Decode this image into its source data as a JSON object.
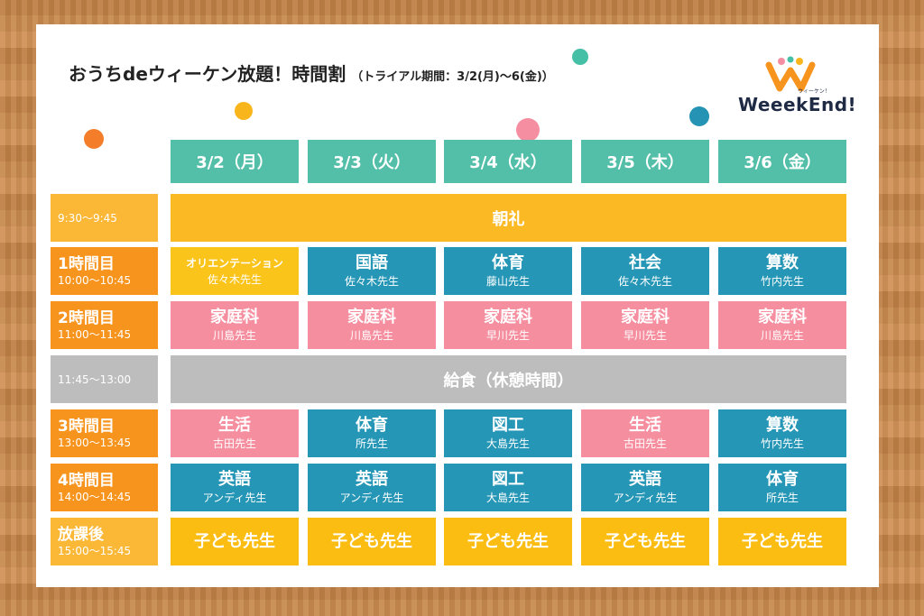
{
  "title": {
    "main": "おうちdeウィーケン放題！時間割",
    "sub": "（トライアル期間：3/2(月)〜6(金)）"
  },
  "logo": {
    "text": "WeeekEnd!",
    "small": "ウィーケン！"
  },
  "days": [
    "3/2（月）",
    "3/3（火）",
    "3/4（水）",
    "3/5（木）",
    "3/6（金）"
  ],
  "rows": [
    {
      "kind": "band",
      "time": {
        "name": "",
        "range": "9:30〜9:45",
        "style": "light-orange"
      },
      "label": "朝礼",
      "band_style": "yellow"
    },
    {
      "kind": "periods",
      "time": {
        "name": "1時間目",
        "range": "10:00〜10:45",
        "style": "orange"
      },
      "cells": [
        {
          "subject": "オリエンテーション",
          "teacher": "佐々木先生",
          "color": "yellow",
          "small": true
        },
        {
          "subject": "国語",
          "teacher": "佐々木先生",
          "color": "blue"
        },
        {
          "subject": "体育",
          "teacher": "藤山先生",
          "color": "blue"
        },
        {
          "subject": "社会",
          "teacher": "佐々木先生",
          "color": "blue"
        },
        {
          "subject": "算数",
          "teacher": "竹内先生",
          "color": "blue"
        }
      ]
    },
    {
      "kind": "periods",
      "time": {
        "name": "2時間目",
        "range": "11:00〜11:45",
        "style": "orange"
      },
      "cells": [
        {
          "subject": "家庭科",
          "teacher": "川島先生",
          "color": "pink"
        },
        {
          "subject": "家庭科",
          "teacher": "川島先生",
          "color": "pink"
        },
        {
          "subject": "家庭科",
          "teacher": "早川先生",
          "color": "pink"
        },
        {
          "subject": "家庭科",
          "teacher": "早川先生",
          "color": "pink"
        },
        {
          "subject": "家庭科",
          "teacher": "川島先生",
          "color": "pink"
        }
      ]
    },
    {
      "kind": "band",
      "time": {
        "name": "",
        "range": "11:45〜13:00",
        "style": "gray"
      },
      "label": "給食（休憩時間）",
      "band_style": "gray"
    },
    {
      "kind": "periods",
      "time": {
        "name": "3時間目",
        "range": "13:00〜13:45",
        "style": "orange"
      },
      "cells": [
        {
          "subject": "生活",
          "teacher": "古田先生",
          "color": "pink"
        },
        {
          "subject": "体育",
          "teacher": "所先生",
          "color": "blue"
        },
        {
          "subject": "図工",
          "teacher": "大島先生",
          "color": "blue"
        },
        {
          "subject": "生活",
          "teacher": "古田先生",
          "color": "pink"
        },
        {
          "subject": "算数",
          "teacher": "竹内先生",
          "color": "blue"
        }
      ]
    },
    {
      "kind": "periods",
      "time": {
        "name": "4時間目",
        "range": "14:00〜14:45",
        "style": "orange"
      },
      "cells": [
        {
          "subject": "英語",
          "teacher": "アンディ先生",
          "color": "blue"
        },
        {
          "subject": "英語",
          "teacher": "アンディ先生",
          "color": "blue"
        },
        {
          "subject": "図工",
          "teacher": "大島先生",
          "color": "blue"
        },
        {
          "subject": "英語",
          "teacher": "アンディ先生",
          "color": "blue"
        },
        {
          "subject": "体育",
          "teacher": "所先生",
          "color": "blue"
        }
      ]
    },
    {
      "kind": "periods",
      "time": {
        "name": "放課後",
        "range": "15:00〜15:45",
        "style": "light-orange"
      },
      "cells": [
        {
          "subject": "子ども先生",
          "teacher": "",
          "color": "gold"
        },
        {
          "subject": "子ども先生",
          "teacher": "",
          "color": "gold"
        },
        {
          "subject": "子ども先生",
          "teacher": "",
          "color": "gold"
        },
        {
          "subject": "子ども先生",
          "teacher": "",
          "color": "gold"
        },
        {
          "subject": "子ども先生",
          "teacher": "",
          "color": "gold"
        }
      ]
    }
  ],
  "colors": {
    "header_teal": "#54bfa8",
    "orange": "#f7941d",
    "yellow": "#fbb924",
    "blue": "#2696b6",
    "pink": "#f58e9f",
    "gray": "#bdbdbd",
    "wood": "#c78a4e"
  }
}
